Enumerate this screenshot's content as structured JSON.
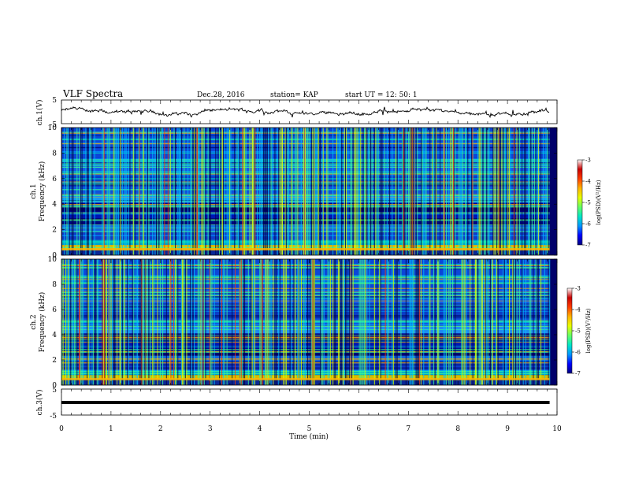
{
  "header": {
    "title": "VLF Spectra",
    "date": "Dec.28, 2016",
    "station": "station= KAP",
    "start": "start  UT =   12: 50: 1"
  },
  "panels": {
    "ch1_wave": {
      "ylabel": "ch.1(V)",
      "ticks": [
        "5",
        "-5"
      ]
    },
    "ch1_spec": {
      "ylabel_line1": "ch.1",
      "ylabel_line2": "Frequency (kHz)",
      "yticks": [
        "10",
        "8",
        "6",
        "4",
        "2",
        "0"
      ]
    },
    "ch2_spec": {
      "ylabel_line1": "ch.2",
      "ylabel_line2": "Frequency (kHz)",
      "yticks": [
        "10",
        "8",
        "6",
        "4",
        "2",
        "0"
      ]
    },
    "ch3_wave": {
      "ylabel": "ch.3(V)",
      "ticks": [
        "5",
        "-5"
      ]
    }
  },
  "colorbar": {
    "label": "log(PSD)(V²/Hz)",
    "ticks": [
      "-3",
      "-4",
      "-5",
      "-6",
      "-7"
    ]
  },
  "xaxis": {
    "label": "Time  (min)",
    "ticks": [
      "0",
      "1",
      "2",
      "3",
      "4",
      "5",
      "6",
      "7",
      "8",
      "9",
      "10"
    ]
  },
  "chart_data": {
    "type": "heatmap",
    "x_range": [
      0,
      10
    ],
    "x_unit": "min",
    "y_range_kHz": [
      0,
      10
    ],
    "color_range": [
      -7,
      -3
    ],
    "colormap": [
      "#00007f",
      "#0000ff",
      "#00c8ff",
      "#3cff96",
      "#c8ff00",
      "#ffc800",
      "#ff0000",
      "#ffffff"
    ],
    "data_end_min": 9.85,
    "ch1_wave_range": [
      -5,
      5
    ],
    "ch3_wave_range": [
      -5,
      5
    ],
    "ch3_constant_level": -1.3
  }
}
